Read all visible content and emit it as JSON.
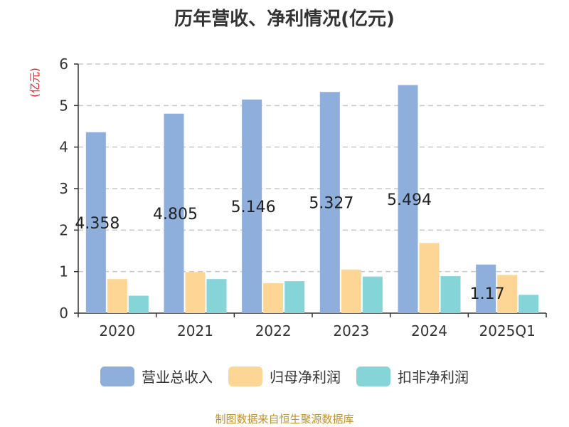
{
  "chart_data": {
    "type": "bar",
    "title": "历年营收、净利情况(亿元)",
    "ylabel": "(亿元)",
    "xlabel": "",
    "categories": [
      "2020",
      "2021",
      "2022",
      "2023",
      "2024",
      "2025Q1"
    ],
    "series": [
      {
        "name": "营业总收入",
        "color": "#8eaedb",
        "values": [
          4.358,
          4.805,
          5.146,
          5.327,
          5.494,
          1.17
        ],
        "labels": [
          "4.358",
          "4.805",
          "5.146",
          "5.327",
          "5.494",
          "1.17"
        ]
      },
      {
        "name": "归母净利润",
        "color": "#fdd695",
        "values": [
          0.82,
          0.99,
          0.72,
          1.05,
          1.69,
          0.92
        ]
      },
      {
        "name": "扣非净利润",
        "color": "#85d4d8",
        "values": [
          0.42,
          0.82,
          0.77,
          0.88,
          0.89,
          0.44
        ]
      }
    ],
    "yticks": [
      "0",
      "1",
      "2",
      "3",
      "4",
      "5",
      "6"
    ],
    "ylim": [
      0,
      6
    ],
    "grid": true,
    "legend_position": "bottom"
  },
  "colors": {
    "axis": "#333333",
    "grid": "#c8c8c8",
    "ylabel": "#e02020",
    "source": "#c0902a"
  },
  "source": "制图数据来自恒生聚源数据库"
}
